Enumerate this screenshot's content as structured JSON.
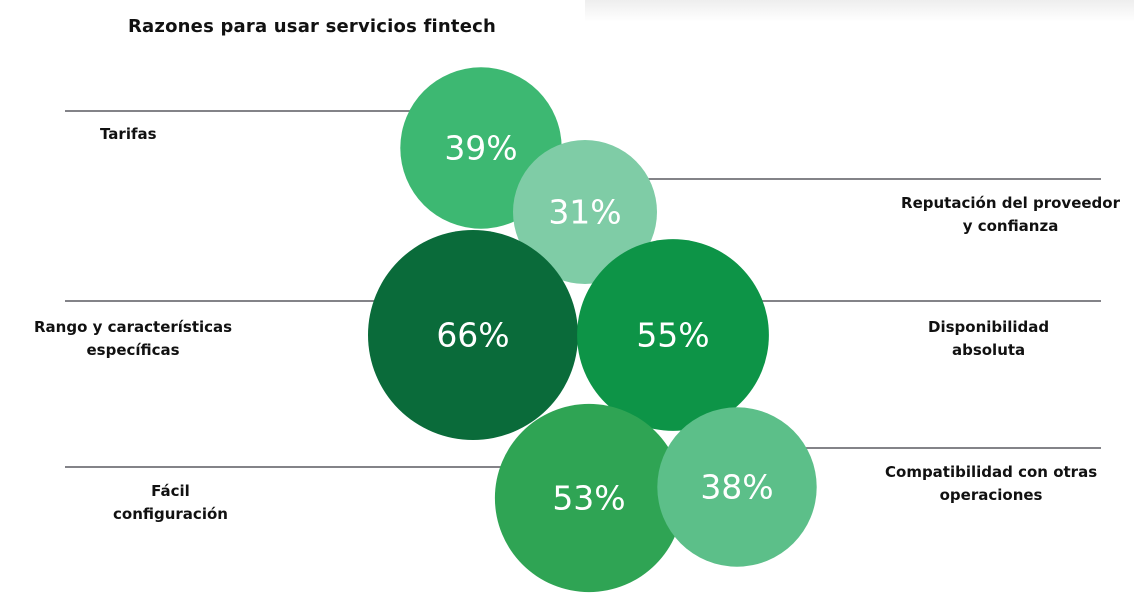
{
  "chart_data": {
    "type": "bubble",
    "title": "Razones para usar servicios fintech",
    "series": [
      {
        "category": [
          "Tarifas"
        ],
        "value": 39,
        "label": "39%",
        "color": "#3db872"
      },
      {
        "category": [
          "Reputación del proveedor",
          "y confianza"
        ],
        "value": 31,
        "label": "31%",
        "color": "#7fcca6"
      },
      {
        "category": [
          "Rango y características",
          "específicas"
        ],
        "value": 66,
        "label": "66%",
        "color": "#0a6b3a"
      },
      {
        "category": [
          "Disponibilidad",
          "absoluta"
        ],
        "value": 55,
        "label": "55%",
        "color": "#0d9447"
      },
      {
        "category": [
          "Fácil",
          "configuración"
        ],
        "value": 53,
        "label": "53%",
        "color": "#2fa454"
      },
      {
        "category": [
          "Compatibilidad con otras",
          "operaciones"
        ],
        "value": 38,
        "label": "38%",
        "color": "#5cbf89"
      }
    ]
  }
}
